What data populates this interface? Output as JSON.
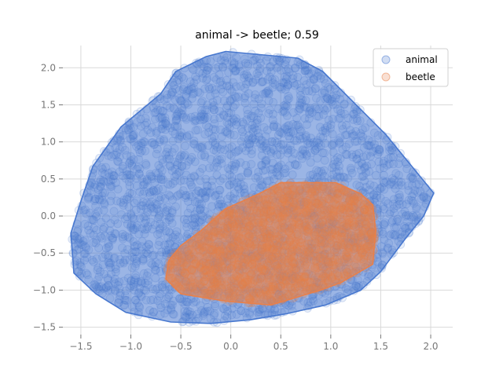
{
  "chart_data": {
    "type": "scatter",
    "title": "animal -> beetle; 0.59",
    "xlabel": "",
    "ylabel": "",
    "xlim": [
      -1.68,
      2.22
    ],
    "ylim": [
      -1.6,
      2.3
    ],
    "xticks": [
      -1.5,
      -1.0,
      -0.5,
      0.0,
      0.5,
      1.0,
      1.5,
      2.0
    ],
    "xtick_labels": [
      "−1.5",
      "−1.0",
      "−0.5",
      "0.0",
      "0.5",
      "1.0",
      "1.5",
      "2.0"
    ],
    "yticks": [
      -1.5,
      -1.0,
      -0.5,
      0.0,
      0.5,
      1.0,
      1.5,
      2.0
    ],
    "ytick_labels": [
      "−1.5",
      "−1.0",
      "−0.5",
      "0.0",
      "0.5",
      "1.0",
      "1.5",
      "2.0"
    ],
    "grid": true,
    "legend_position": "top-right",
    "series": [
      {
        "name": "animal",
        "color": "#4878CF",
        "hull": [
          [
            -0.05,
            2.22
          ],
          [
            0.67,
            2.13
          ],
          [
            0.92,
            1.95
          ],
          [
            1.55,
            1.1
          ],
          [
            2.03,
            0.31
          ],
          [
            1.93,
            0.0
          ],
          [
            1.75,
            -0.3
          ],
          [
            1.5,
            -0.75
          ],
          [
            1.3,
            -1.0
          ],
          [
            0.95,
            -1.2
          ],
          [
            0.55,
            -1.32
          ],
          [
            0.2,
            -1.4
          ],
          [
            -0.2,
            -1.45
          ],
          [
            -0.6,
            -1.43
          ],
          [
            -1.05,
            -1.3
          ],
          [
            -1.35,
            -1.05
          ],
          [
            -1.57,
            -0.77
          ],
          [
            -1.6,
            -0.23
          ],
          [
            -1.5,
            0.2
          ],
          [
            -1.38,
            0.67
          ],
          [
            -1.1,
            1.2
          ],
          [
            -0.7,
            1.65
          ],
          [
            -0.55,
            1.95
          ],
          [
            -0.25,
            2.15
          ]
        ]
      },
      {
        "name": "beetle",
        "color": "#E8804A",
        "hull": [
          [
            0.5,
            0.45
          ],
          [
            1.05,
            0.45
          ],
          [
            1.3,
            0.3
          ],
          [
            1.42,
            0.15
          ],
          [
            1.45,
            -0.2
          ],
          [
            1.42,
            -0.65
          ],
          [
            1.1,
            -0.9
          ],
          [
            0.9,
            -1.0
          ],
          [
            0.4,
            -1.2
          ],
          [
            -0.05,
            -1.15
          ],
          [
            -0.5,
            -1.05
          ],
          [
            -0.65,
            -0.85
          ],
          [
            -0.62,
            -0.6
          ],
          [
            -0.5,
            -0.4
          ],
          [
            -0.3,
            -0.2
          ],
          [
            -0.05,
            0.1
          ],
          [
            0.25,
            0.28
          ]
        ]
      }
    ]
  }
}
